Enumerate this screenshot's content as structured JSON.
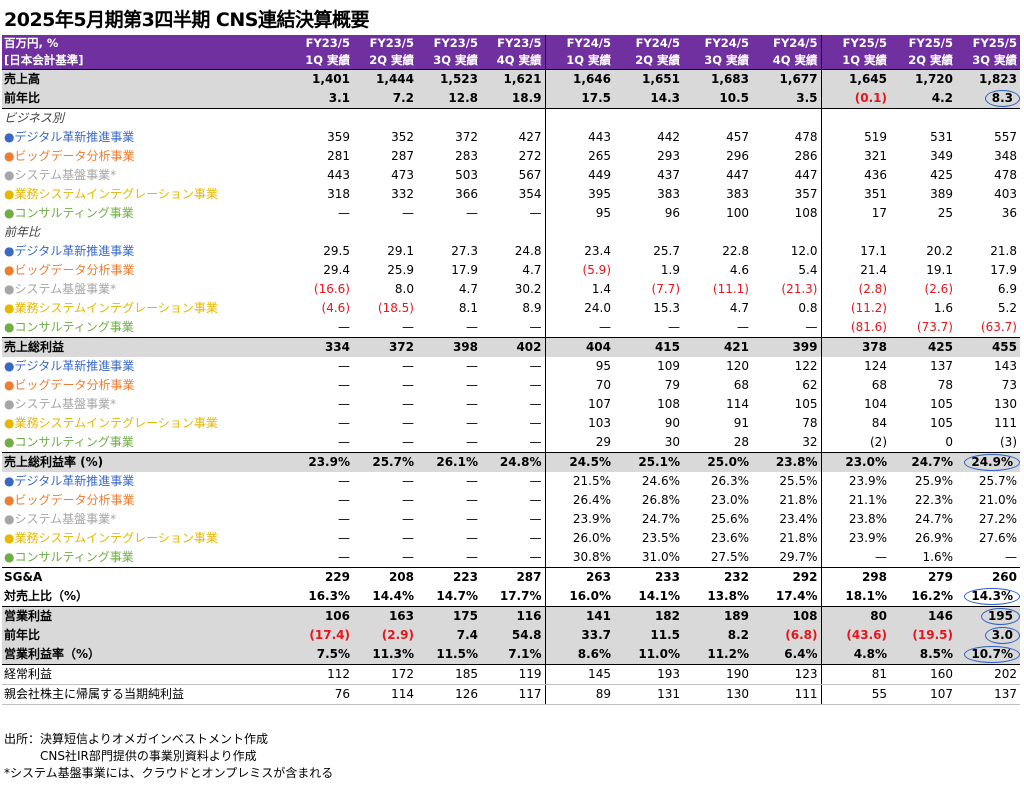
{
  "title": "2025年5月期第3四半期 CNS連結決算概要",
  "header": {
    "unit": "百万円, %",
    "standard": "[日本会計基準]",
    "periods": [
      {
        "fy": "FY23/5",
        "q": "1Q 実績"
      },
      {
        "fy": "FY23/5",
        "q": "2Q 実績"
      },
      {
        "fy": "FY23/5",
        "q": "3Q 実績"
      },
      {
        "fy": "FY23/5",
        "q": "4Q 実績"
      },
      {
        "fy": "FY24/5",
        "q": "1Q 実績"
      },
      {
        "fy": "FY24/5",
        "q": "2Q 実績"
      },
      {
        "fy": "FY24/5",
        "q": "3Q 実績"
      },
      {
        "fy": "FY24/5",
        "q": "4Q 実績"
      },
      {
        "fy": "FY25/5",
        "q": "1Q 実績"
      },
      {
        "fy": "FY25/5",
        "q": "2Q 実績"
      },
      {
        "fy": "FY25/5",
        "q": "3Q 実績"
      }
    ]
  },
  "rows": [
    {
      "label": "売上高",
      "style": "gray bold",
      "values": [
        "1,401",
        "1,444",
        "1,523",
        "1,621",
        "1,646",
        "1,651",
        "1,683",
        "1,677",
        "1,645",
        "1,720",
        "1,823"
      ]
    },
    {
      "label": "前年比",
      "style": "gray bold",
      "values": [
        "3.1",
        "7.2",
        "12.8",
        "18.9",
        "17.5",
        "14.3",
        "10.5",
        "3.5",
        "(0.1)",
        "4.2",
        "8.3"
      ],
      "neg": [
        8
      ],
      "circle": [
        10
      ]
    },
    {
      "label": "ビジネス別",
      "style": "italic",
      "values": [
        "",
        "",
        "",
        "",
        "",
        "",
        "",
        "",
        "",
        "",
        ""
      ]
    },
    {
      "label": "●デジタル革新推進事業",
      "color": "blue",
      "values": [
        "359",
        "352",
        "372",
        "427",
        "443",
        "442",
        "457",
        "478",
        "519",
        "531",
        "557"
      ]
    },
    {
      "label": "●ビッグデータ分析事業",
      "color": "orange",
      "values": [
        "281",
        "287",
        "283",
        "272",
        "265",
        "293",
        "296",
        "286",
        "321",
        "349",
        "348"
      ]
    },
    {
      "label": "●システム基盤事業*",
      "color": "gray",
      "values": [
        "443",
        "473",
        "503",
        "567",
        "449",
        "437",
        "447",
        "447",
        "436",
        "425",
        "478"
      ]
    },
    {
      "label": "●業務システムインテグレーション事業",
      "color": "gold",
      "values": [
        "318",
        "332",
        "366",
        "354",
        "395",
        "383",
        "383",
        "357",
        "351",
        "389",
        "403"
      ]
    },
    {
      "label": "●コンサルティング事業",
      "color": "green",
      "values": [
        "—",
        "—",
        "—",
        "—",
        "95",
        "96",
        "100",
        "108",
        "17",
        "25",
        "36"
      ]
    },
    {
      "label": "前年比",
      "style": "italic",
      "values": [
        "",
        "",
        "",
        "",
        "",
        "",
        "",
        "",
        "",
        "",
        ""
      ]
    },
    {
      "label": "●デジタル革新推進事業",
      "color": "blue",
      "values": [
        "29.5",
        "29.1",
        "27.3",
        "24.8",
        "23.4",
        "25.7",
        "22.8",
        "12.0",
        "17.1",
        "20.2",
        "21.8"
      ]
    },
    {
      "label": "●ビッグデータ分析事業",
      "color": "orange",
      "values": [
        "29.4",
        "25.9",
        "17.9",
        "4.7",
        "(5.9)",
        "1.9",
        "4.6",
        "5.4",
        "21.4",
        "19.1",
        "17.9"
      ],
      "neg": [
        4
      ]
    },
    {
      "label": "●システム基盤事業*",
      "color": "gray",
      "values": [
        "(16.6)",
        "8.0",
        "4.7",
        "30.2",
        "1.4",
        "(7.7)",
        "(11.1)",
        "(21.3)",
        "(2.8)",
        "(2.6)",
        "6.9"
      ],
      "neg": [
        0,
        5,
        6,
        7,
        8,
        9
      ]
    },
    {
      "label": "●業務システムインテグレーション事業",
      "color": "gold",
      "values": [
        "(4.6)",
        "(18.5)",
        "8.1",
        "8.9",
        "24.0",
        "15.3",
        "4.7",
        "0.8",
        "(11.2)",
        "1.6",
        "5.2"
      ],
      "neg": [
        0,
        1,
        8
      ]
    },
    {
      "label": "●コンサルティング事業",
      "color": "green",
      "values": [
        "—",
        "—",
        "—",
        "—",
        "—",
        "—",
        "—",
        "—",
        "(81.6)",
        "(73.7)",
        "(63.7)"
      ],
      "neg": [
        8,
        9,
        10
      ]
    },
    {
      "label": "売上総利益",
      "style": "gray bold",
      "values": [
        "334",
        "372",
        "398",
        "402",
        "404",
        "415",
        "421",
        "399",
        "378",
        "425",
        "455"
      ]
    },
    {
      "label": "●デジタル革新推進事業",
      "color": "blue",
      "values": [
        "—",
        "—",
        "—",
        "—",
        "95",
        "109",
        "120",
        "122",
        "124",
        "137",
        "143"
      ]
    },
    {
      "label": "●ビッグデータ分析事業",
      "color": "orange",
      "values": [
        "—",
        "—",
        "—",
        "—",
        "70",
        "79",
        "68",
        "62",
        "68",
        "78",
        "73"
      ]
    },
    {
      "label": "●システム基盤事業*",
      "color": "gray",
      "values": [
        "—",
        "—",
        "—",
        "—",
        "107",
        "108",
        "114",
        "105",
        "104",
        "105",
        "130"
      ]
    },
    {
      "label": "●業務システムインテグレーション事業",
      "color": "gold",
      "values": [
        "—",
        "—",
        "—",
        "—",
        "103",
        "90",
        "91",
        "78",
        "84",
        "105",
        "111"
      ]
    },
    {
      "label": "●コンサルティング事業",
      "color": "green",
      "values": [
        "—",
        "—",
        "—",
        "—",
        "29",
        "30",
        "28",
        "32",
        "(2)",
        "0",
        "(3)"
      ]
    },
    {
      "label": "売上総利益率 (%)",
      "style": "gray bold",
      "values": [
        "23.9%",
        "25.7%",
        "26.1%",
        "24.8%",
        "24.5%",
        "25.1%",
        "25.0%",
        "23.8%",
        "23.0%",
        "24.7%",
        "24.9%"
      ],
      "circle": [
        10
      ]
    },
    {
      "label": "●デジタル革新推進事業",
      "color": "blue",
      "values": [
        "—",
        "—",
        "—",
        "—",
        "21.5%",
        "24.6%",
        "26.3%",
        "25.5%",
        "23.9%",
        "25.9%",
        "25.7%"
      ]
    },
    {
      "label": "●ビッグデータ分析事業",
      "color": "orange",
      "values": [
        "—",
        "—",
        "—",
        "—",
        "26.4%",
        "26.8%",
        "23.0%",
        "21.8%",
        "21.1%",
        "22.3%",
        "21.0%"
      ]
    },
    {
      "label": "●システム基盤事業*",
      "color": "gray",
      "values": [
        "—",
        "—",
        "—",
        "—",
        "23.9%",
        "24.7%",
        "25.6%",
        "23.4%",
        "23.8%",
        "24.7%",
        "27.2%"
      ]
    },
    {
      "label": "●業務システムインテグレーション事業",
      "color": "gold",
      "values": [
        "—",
        "—",
        "—",
        "—",
        "26.0%",
        "23.5%",
        "23.6%",
        "21.8%",
        "23.9%",
        "26.9%",
        "27.6%"
      ]
    },
    {
      "label": "●コンサルティング事業",
      "color": "green",
      "values": [
        "—",
        "—",
        "—",
        "—",
        "30.8%",
        "31.0%",
        "27.5%",
        "29.7%",
        "—",
        "1.6%",
        "—"
      ]
    },
    {
      "label": "SG&A",
      "style": "boldlabel",
      "values": [
        "229",
        "208",
        "223",
        "287",
        "263",
        "233",
        "232",
        "292",
        "298",
        "279",
        "260"
      ]
    },
    {
      "label": "対売上比（%）",
      "style": "boldlabel",
      "values": [
        "16.3%",
        "14.4%",
        "14.7%",
        "17.7%",
        "16.0%",
        "14.1%",
        "13.8%",
        "17.4%",
        "18.1%",
        "16.2%",
        "14.3%"
      ],
      "circle": [
        10
      ]
    },
    {
      "label": "営業利益",
      "style": "gray bold",
      "values": [
        "106",
        "163",
        "175",
        "116",
        "141",
        "182",
        "189",
        "108",
        "80",
        "146",
        "195"
      ],
      "circle": [
        10
      ]
    },
    {
      "label": "前年比",
      "style": "gray bold",
      "values": [
        "(17.4)",
        "(2.9)",
        "7.4",
        "54.8",
        "33.7",
        "11.5",
        "8.2",
        "(6.8)",
        "(43.6)",
        "(19.5)",
        "3.0"
      ],
      "neg": [
        0,
        1,
        7,
        8,
        9
      ],
      "circle": [
        10
      ]
    },
    {
      "label": "営業利益率（%）",
      "style": "gray bold",
      "values": [
        "7.5%",
        "11.3%",
        "11.5%",
        "7.1%",
        "8.6%",
        "11.0%",
        "11.2%",
        "6.4%",
        "4.8%",
        "8.5%",
        "10.7%"
      ],
      "circle": [
        10
      ]
    },
    {
      "label": "経常利益",
      "style": "plain",
      "values": [
        "112",
        "172",
        "185",
        "119",
        "145",
        "193",
        "190",
        "123",
        "81",
        "160",
        "202"
      ]
    },
    {
      "label": "親会社株主に帰属する当期純利益",
      "style": "plain",
      "values": [
        "76",
        "114",
        "126",
        "117",
        "89",
        "131",
        "130",
        "111",
        "55",
        "107",
        "137"
      ]
    }
  ],
  "notes": [
    "出所：決算短信よりオメガインベストメント作成",
    "　　　CNS社IR部門提供の事業別資料より作成",
    "*システム基盤事業には、クラウドとオンプレミスが含まれる"
  ],
  "colors": {
    "header_bg": "#7030a0",
    "highlight_bg": "#d9d9d9",
    "negative": "#e8141b",
    "circle": "#2f5fc4",
    "blue": "#3a69c4",
    "orange": "#ed7d31",
    "gray": "#a6a6a6",
    "gold": "#e6b800",
    "green": "#70ad47"
  }
}
